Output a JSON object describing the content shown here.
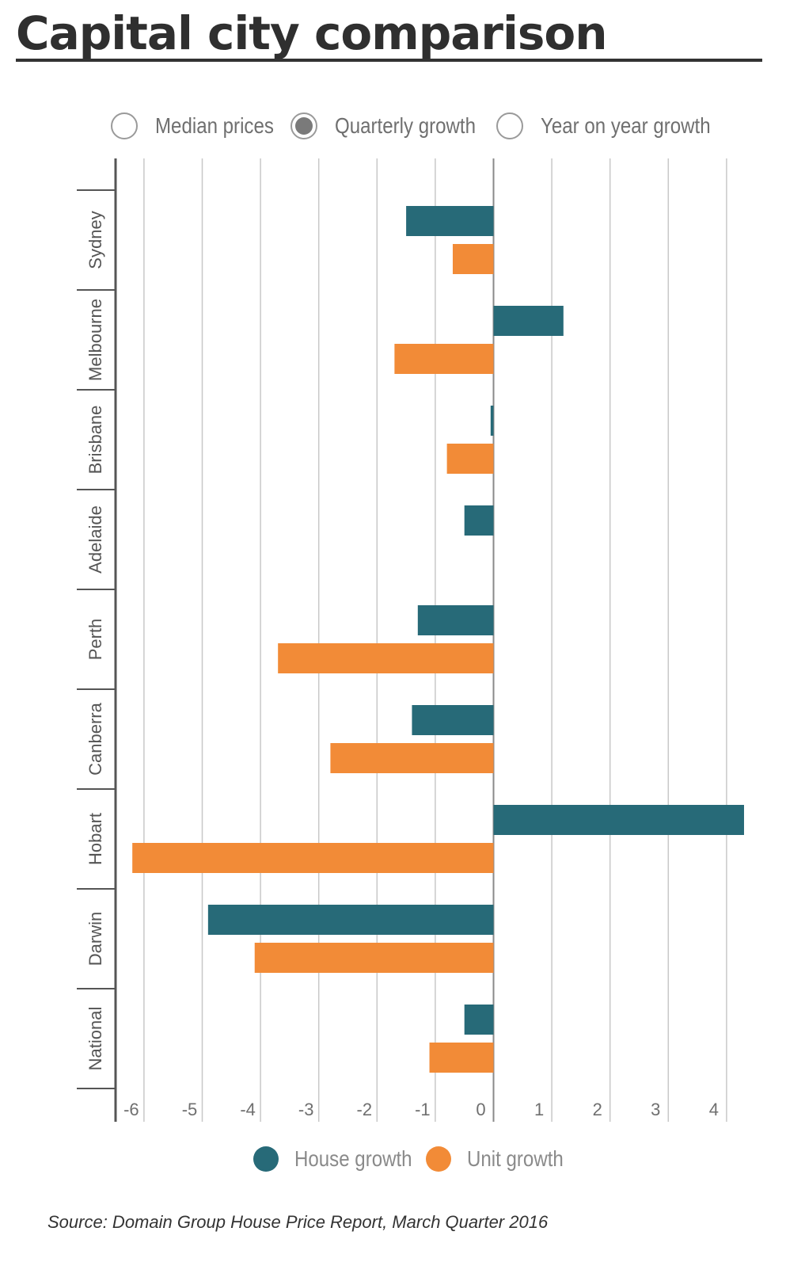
{
  "title": "Capital city comparison",
  "options": [
    {
      "label": "Median prices",
      "selected": false
    },
    {
      "label": "Quarterly growth",
      "selected": true
    },
    {
      "label": "Year on year growth",
      "selected": false
    }
  ],
  "colors": {
    "house": "#276a78",
    "unit": "#f28b37",
    "grid": "#c8c8c8",
    "axis": "#555555",
    "text": "#6f6f6f"
  },
  "chart_data": {
    "type": "bar",
    "orientation": "horizontal",
    "categories": [
      "Sydney",
      "Melbourne",
      "Brisbane",
      "Adelaide",
      "Perth",
      "Canberra",
      "Hobart",
      "Darwin",
      "National"
    ],
    "series": [
      {
        "name": "House growth",
        "values": [
          -1.5,
          1.2,
          -0.05,
          -0.5,
          -1.3,
          -1.4,
          4.3,
          -4.9,
          -0.5
        ]
      },
      {
        "name": "Unit growth",
        "values": [
          -0.7,
          -1.7,
          -0.8,
          0,
          -3.7,
          -2.8,
          -6.2,
          -4.1,
          -1.1
        ]
      }
    ],
    "xlim": [
      -6.5,
      4.5
    ],
    "xticks": [
      -6,
      -5,
      -4,
      -3,
      -2,
      -1,
      0,
      1,
      2,
      3,
      4
    ],
    "xtick_labels": [
      "-6",
      "-5",
      "-4",
      "-3",
      "-2",
      "-1",
      "0",
      "1",
      "2",
      "3",
      "4"
    ],
    "grid": true,
    "legend": "bottom-center"
  },
  "legend": {
    "house_label": "House growth",
    "unit_label": "Unit growth"
  },
  "source": "Source: Domain Group House Price Report, March Quarter 2016"
}
